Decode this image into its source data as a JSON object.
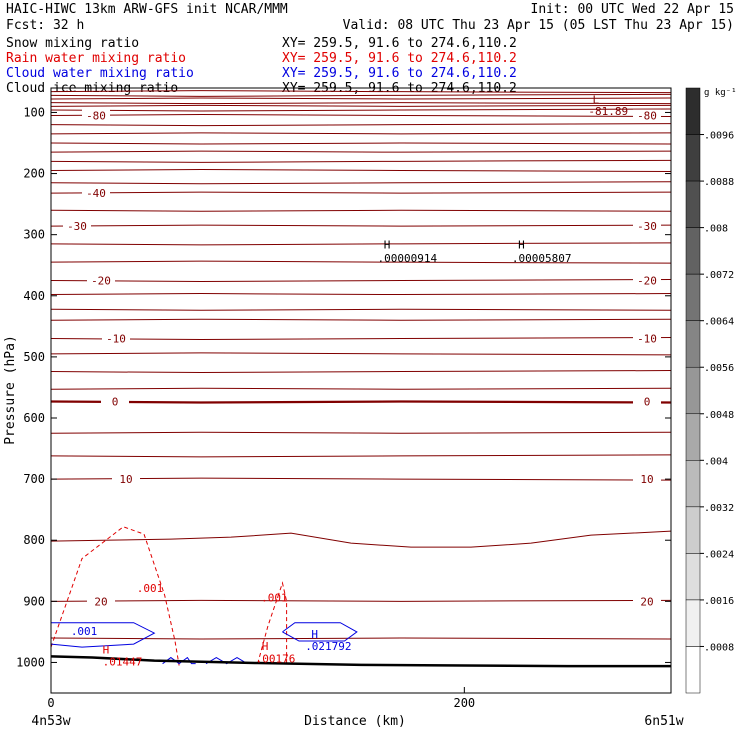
{
  "header": {
    "model_line": "HAIC-HIWC 13km ARW-GFS init   NCAR/MMM",
    "init_line": "Init: 00 UTC Wed 22 Apr 15",
    "fcst_line": "Fcst:   32 h",
    "valid_line": "Valid: 08 UTC Thu 23 Apr 15 (05 LST Thu 23 Apr 15)",
    "fields": [
      {
        "name": "Snow mixing ratio",
        "xy": "XY= 259.5, 91.6 to 274.6,110.2",
        "color": "#000000"
      },
      {
        "name": "Rain water mixing ratio",
        "xy": "XY= 259.5, 91.6 to 274.6,110.2",
        "color": "#e00000"
      },
      {
        "name": "Cloud water mixing ratio",
        "xy": "XY= 259.5, 91.6 to 274.6,110.2",
        "color": "#0000e0"
      },
      {
        "name": "Cloud ice mixing ratio",
        "xy": "XY= 259.5, 91.6 to 274.6,110.2",
        "color": "#000000"
      }
    ]
  },
  "chart_data": {
    "type": "cross-section contour",
    "xlabel": "Distance (km)",
    "ylabel": "Pressure (hPa)",
    "xlim": [
      0,
      300
    ],
    "ylim": [
      1050,
      60
    ],
    "x_ticks": [
      0,
      200
    ],
    "x_end_labels": {
      "left": "4n53w",
      "right": "6n51w"
    },
    "y_ticks": [
      100,
      200,
      300,
      400,
      500,
      600,
      700,
      800,
      900,
      1000
    ],
    "temperature_line_color": "#800000",
    "temperature_levels": [
      {
        "p": 66
      },
      {
        "p": 72
      },
      {
        "p": 78
      },
      {
        "p": 84
      },
      {
        "p": 90
      },
      {
        "p": 96
      },
      {
        "p": 105,
        "label": "-80",
        "lx": 25,
        "rlabel": "-80"
      },
      {
        "p": 120
      },
      {
        "p": 135
      },
      {
        "p": 150
      },
      {
        "p": 165
      },
      {
        "p": 180
      },
      {
        "p": 195
      },
      {
        "p": 215
      },
      {
        "p": 232,
        "label": "-40",
        "lx": 25
      },
      {
        "p": 260
      },
      {
        "p": 286,
        "label": "-30",
        "lx": 6,
        "rlabel": "-30"
      },
      {
        "p": 315
      },
      {
        "p": 345
      },
      {
        "p": 375,
        "label": "-20",
        "lx": 30,
        "rlabel": "-20"
      },
      {
        "p": 398
      },
      {
        "p": 422
      },
      {
        "p": 440
      },
      {
        "p": 470,
        "label": "-10",
        "lx": 45,
        "rlabel": "-10"
      },
      {
        "p": 495
      },
      {
        "p": 524
      },
      {
        "p": 553
      },
      {
        "p": 573,
        "label": "0",
        "lx": 44,
        "rlabel": "0",
        "bold": true
      },
      {
        "p": 625
      },
      {
        "p": 662
      },
      {
        "p": 700,
        "label": "10",
        "lx": 55,
        "rlabel": "10"
      },
      {
        "p": 795,
        "wavy": true
      },
      {
        "p": 900,
        "label": "20",
        "lx": 30,
        "rlabel": "20"
      },
      {
        "p": 960
      }
    ],
    "ground": {
      "color": "#000000",
      "x": [
        0,
        20,
        50,
        100,
        150,
        200,
        250,
        300
      ],
      "p": [
        990,
        992,
        997,
        1001,
        1004,
        1005,
        1006,
        1006
      ]
    },
    "rain_contours": [
      {
        "label": ".001",
        "x": [
          0,
          15,
          35,
          45,
          55,
          60,
          62
        ],
        "p": [
          975,
          830,
          778,
          790,
          890,
          965,
          1005
        ]
      },
      {
        "label": ".001",
        "x": [
          100,
          105,
          110,
          112,
          114,
          114
        ],
        "p": [
          1002,
          940,
          890,
          870,
          900,
          1002
        ]
      }
    ],
    "cloud_water_contours": [
      {
        "label": ".001",
        "x": [
          0,
          40,
          50,
          40,
          15,
          0
        ],
        "p": [
          935,
          935,
          952,
          970,
          975,
          970
        ]
      },
      {
        "label": "",
        "x": [
          54,
          58,
          62,
          66,
          68,
          70
        ],
        "p": [
          1002,
          992,
          1002,
          992,
          1002,
          1002
        ]
      },
      {
        "label": "",
        "x": [
          75,
          80,
          85,
          90,
          95
        ],
        "p": [
          1002,
          992,
          1002,
          992,
          1002
        ]
      },
      {
        "label": "",
        "x": [
          112,
          118,
          140,
          148,
          142,
          120,
          112
        ],
        "p": [
          950,
          935,
          935,
          950,
          965,
          965,
          950
        ]
      }
    ],
    "annotations": [
      {
        "text": "L",
        "x": 262,
        "p": 85,
        "color": "#800000"
      },
      {
        "text": "-81.89",
        "x": 260,
        "p": 104,
        "color": "#800000"
      },
      {
        "text": "H",
        "x": 161,
        "p": 323,
        "color": "#000000"
      },
      {
        "text": ".00000914",
        "x": 158,
        "p": 345,
        "color": "#000000"
      },
      {
        "text": "H",
        "x": 226,
        "p": 323,
        "color": "#000000"
      },
      {
        "text": ".00005807",
        "x": 223,
        "p": 345,
        "color": "#000000"
      },
      {
        "text": "H",
        "x": 126,
        "p": 960,
        "color": "#0000e0"
      },
      {
        "text": ".021792",
        "x": 123,
        "p": 980,
        "color": "#0000e0"
      },
      {
        "text": "H",
        "x": 102,
        "p": 980,
        "color": "#e00000"
      },
      {
        "text": ".00176",
        "x": 99,
        "p": 1000,
        "color": "#e00000"
      },
      {
        "text": "H",
        "x": 25,
        "p": 985,
        "color": "#e00000"
      },
      {
        "text": ".01447",
        "x": 25,
        "p": 1005,
        "color": "#e00000"
      }
    ],
    "colorbar": {
      "unit": "g kg⁻¹",
      "labels": [
        ".0096",
        ".0088",
        ".008",
        ".0072",
        ".0064",
        ".0056",
        ".0048",
        ".004",
        ".0032",
        ".0024",
        ".0016",
        ".0008"
      ],
      "colors": [
        "#2d2d2d",
        "#3f3f3f",
        "#505050",
        "#626262",
        "#747474",
        "#858585",
        "#979797",
        "#a9a9a9",
        "#bbbbbb",
        "#cdcdcd",
        "#dedede",
        "#f0f0f0",
        "#ffffff"
      ]
    }
  }
}
